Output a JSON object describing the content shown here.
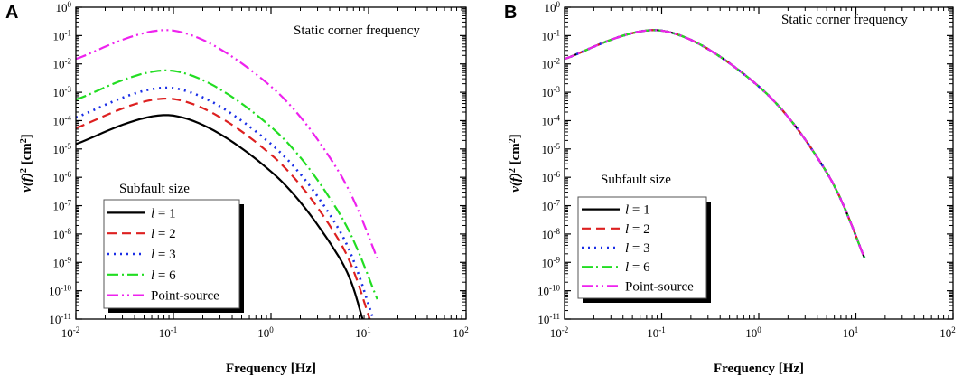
{
  "figure": {
    "panel_labels": [
      "A",
      "B"
    ]
  },
  "chart_data": [
    {
      "panel": "A",
      "type": "line",
      "scale": "log-log",
      "title": "",
      "annotation": "Static corner frequency",
      "xlabel": "Frequency [Hz]",
      "ylabel_base": "v(f)",
      "ylabel_exp": "2",
      "ylabel_unit": "[cm",
      "ylabel_unit_exp": "2",
      "ylabel_close": "]",
      "xlim": [
        0.01,
        100
      ],
      "ylim": [
        1e-11,
        1
      ],
      "x_ticks": [
        {
          "base": "10",
          "exp": "-2",
          "v": -2
        },
        {
          "base": "10",
          "exp": "-1",
          "v": -1
        },
        {
          "base": "10",
          "exp": "0",
          "v": 0
        },
        {
          "base": "10",
          "exp": "1",
          "v": 1
        },
        {
          "base": "10",
          "exp": "2",
          "v": 2
        }
      ],
      "y_ticks": [
        {
          "base": "10",
          "exp": "0",
          "v": 0
        },
        {
          "base": "10",
          "exp": "-1",
          "v": -1
        },
        {
          "base": "10",
          "exp": "-2",
          "v": -2
        },
        {
          "base": "10",
          "exp": "-3",
          "v": -3
        },
        {
          "base": "10",
          "exp": "-4",
          "v": -4
        },
        {
          "base": "10",
          "exp": "-5",
          "v": -5
        },
        {
          "base": "10",
          "exp": "-6",
          "v": -6
        },
        {
          "base": "10",
          "exp": "-7",
          "v": -7
        },
        {
          "base": "10",
          "exp": "-8",
          "v": -8
        },
        {
          "base": "10",
          "exp": "-9",
          "v": -9
        },
        {
          "base": "10",
          "exp": "-10",
          "v": -10
        },
        {
          "base": "10",
          "exp": "-11",
          "v": -11
        }
      ],
      "legend": {
        "title": "Subfault size",
        "entries": [
          {
            "label_var": "l",
            "label_rest": " = 1"
          },
          {
            "label_var": "l",
            "label_rest": " = 2"
          },
          {
            "label_var": "l",
            "label_rest": " = 3"
          },
          {
            "label_var": "l",
            "label_rest": " = 6"
          },
          {
            "label_var": "",
            "label_rest": "Point-source"
          }
        ]
      },
      "series": [
        {
          "name": "l = 1",
          "color": "#000000",
          "dash": "",
          "width": 2.2,
          "x": [
            0.01,
            0.1,
            1,
            5,
            8.7
          ],
          "y": [
            1.5e-05,
            0.00015,
            1.6e-06,
            1.5e-09,
            1e-11
          ]
        },
        {
          "name": "l = 2",
          "color": "#dd2020",
          "dash": "10,6",
          "width": 2.2,
          "x": [
            0.01,
            0.1,
            1,
            5,
            10.3
          ],
          "y": [
            5.5e-05,
            0.00058,
            6.3e-06,
            5.8e-09,
            1e-11
          ]
        },
        {
          "name": "l = 3",
          "color": "#1a2ee6",
          "dash": "2,5",
          "width": 2.6,
          "x": [
            0.01,
            0.1,
            1,
            5,
            11.2
          ],
          "y": [
            0.00013,
            0.0014,
            1.5e-05,
            1.4e-08,
            1e-11
          ]
        },
        {
          "name": "l = 6",
          "color": "#22dd22",
          "dash": "12,4,2,4",
          "width": 2.2,
          "x": [
            0.01,
            0.1,
            1,
            5,
            12.3
          ],
          "y": [
            0.00055,
            0.0057,
            6e-05,
            5.5e-08,
            5e-11
          ]
        },
        {
          "name": "Point-source",
          "color": "#ee22ee",
          "dash": "12,4,2,4,2,4",
          "width": 2.2,
          "x": [
            0.01,
            0.1,
            1,
            5,
            12.3
          ],
          "y": [
            0.015,
            0.15,
            0.0016,
            1.5e-06,
            1.4e-09
          ]
        }
      ]
    },
    {
      "panel": "B",
      "type": "line",
      "scale": "log-log",
      "title": "",
      "annotation": "Static corner frequency",
      "xlabel": "Frequency [Hz]",
      "ylabel_base": "v(f)",
      "ylabel_exp": "2",
      "ylabel_unit": "[cm",
      "ylabel_unit_exp": "2",
      "ylabel_close": "]",
      "xlim": [
        0.01,
        100
      ],
      "ylim": [
        1e-11,
        1
      ],
      "x_ticks": [
        {
          "base": "10",
          "exp": "-2",
          "v": -2
        },
        {
          "base": "10",
          "exp": "-1",
          "v": -1
        },
        {
          "base": "10",
          "exp": "0",
          "v": 0
        },
        {
          "base": "10",
          "exp": "1",
          "v": 1
        },
        {
          "base": "10",
          "exp": "2",
          "v": 2
        }
      ],
      "y_ticks": [
        {
          "base": "10",
          "exp": "0",
          "v": 0
        },
        {
          "base": "10",
          "exp": "-1",
          "v": -1
        },
        {
          "base": "10",
          "exp": "-2",
          "v": -2
        },
        {
          "base": "10",
          "exp": "-3",
          "v": -3
        },
        {
          "base": "10",
          "exp": "-4",
          "v": -4
        },
        {
          "base": "10",
          "exp": "-5",
          "v": -5
        },
        {
          "base": "10",
          "exp": "-6",
          "v": -6
        },
        {
          "base": "10",
          "exp": "-7",
          "v": -7
        },
        {
          "base": "10",
          "exp": "-8",
          "v": -8
        },
        {
          "base": "10",
          "exp": "-9",
          "v": -9
        },
        {
          "base": "10",
          "exp": "-10",
          "v": -10
        },
        {
          "base": "10",
          "exp": "-11",
          "v": -11
        }
      ],
      "legend": {
        "title": "Subfault size",
        "entries": [
          {
            "label_var": "l",
            "label_rest": " = 1"
          },
          {
            "label_var": "l",
            "label_rest": " = 2"
          },
          {
            "label_var": "l",
            "label_rest": " = 3"
          },
          {
            "label_var": "l",
            "label_rest": " = 6"
          },
          {
            "label_var": "",
            "label_rest": "Point-source"
          }
        ]
      },
      "series": [
        {
          "name": "l = 1",
          "color": "#000000",
          "dash": "",
          "width": 2.2,
          "x": [
            0.01,
            0.1,
            1,
            5,
            12.3
          ],
          "y": [
            0.015,
            0.15,
            0.0016,
            1.5e-06,
            1.4e-09
          ]
        },
        {
          "name": "l = 2",
          "color": "#dd2020",
          "dash": "10,6",
          "width": 2.2,
          "x": [
            0.01,
            0.1,
            1,
            5,
            12.3
          ],
          "y": [
            0.015,
            0.15,
            0.0016,
            1.5e-06,
            1.4e-09
          ]
        },
        {
          "name": "l = 3",
          "color": "#1a2ee6",
          "dash": "2,5",
          "width": 2.6,
          "x": [
            0.01,
            0.1,
            1,
            5,
            12.3
          ],
          "y": [
            0.015,
            0.15,
            0.0016,
            1.5e-06,
            1.4e-09
          ]
        },
        {
          "name": "l = 6",
          "color": "#22dd22",
          "dash": "12,4,2,4",
          "width": 2.2,
          "x": [
            0.01,
            0.1,
            1,
            5,
            12.3
          ],
          "y": [
            0.015,
            0.15,
            0.0016,
            1.5e-06,
            1.4e-09
          ]
        },
        {
          "name": "Point-source",
          "color": "#ee22ee",
          "dash": "12,4,2,4,2,4",
          "width": 2.2,
          "x": [
            0.01,
            0.1,
            1,
            5,
            12.3
          ],
          "y": [
            0.015,
            0.15,
            0.0016,
            1.5e-06,
            1.4e-09
          ]
        }
      ]
    }
  ]
}
